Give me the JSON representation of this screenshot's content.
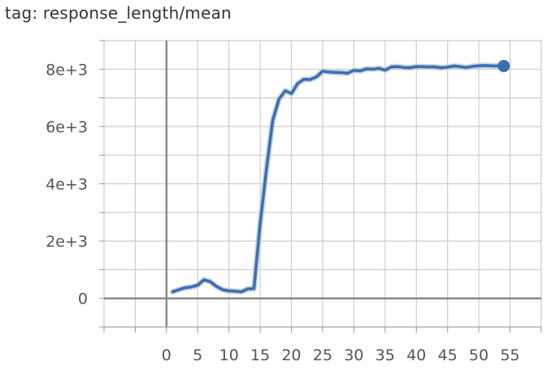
{
  "title": "tag: response_length/mean",
  "colors": {
    "line": "#3a6fb0",
    "raw": "#b9c7dc",
    "grid": "#cccccc",
    "axis": "#999999",
    "zero": "#888888"
  },
  "chart_data": {
    "type": "line",
    "title": "tag: response_length/mean",
    "xlabel": "",
    "ylabel": "",
    "xlim": [
      -10,
      60
    ],
    "ylim": [
      -1000,
      9000
    ],
    "xticks": [
      0,
      5,
      10,
      15,
      20,
      25,
      30,
      35,
      40,
      45,
      50,
      55
    ],
    "xtick_labels": [
      "0",
      "5",
      "10",
      "15",
      "20",
      "25",
      "30",
      "35",
      "40",
      "45",
      "50",
      "55"
    ],
    "yticks": [
      0,
      2000,
      4000,
      6000,
      8000
    ],
    "ytick_labels": [
      "0",
      "2e+3",
      "4e+3",
      "6e+3",
      "8e+3"
    ],
    "grid": true,
    "series": [
      {
        "x": [
          1,
          2,
          3,
          4,
          5,
          6,
          7,
          8,
          9,
          10,
          11,
          12,
          13,
          14,
          15,
          16,
          17,
          18,
          19,
          20,
          21,
          22,
          23,
          24,
          25,
          26,
          27,
          28,
          29,
          30,
          31,
          32,
          33,
          34,
          35,
          36,
          37,
          38,
          39,
          40,
          41,
          42,
          43,
          44,
          45,
          46,
          47,
          48,
          49,
          50,
          51,
          52,
          53,
          54
        ],
        "y": [
          230,
          300,
          370,
          400,
          460,
          650,
          580,
          420,
          300,
          260,
          250,
          230,
          330,
          340,
          2600,
          4500,
          6200,
          6950,
          7250,
          7150,
          7500,
          7650,
          7640,
          7730,
          7930,
          7900,
          7890,
          7880,
          7860,
          7960,
          7940,
          8010,
          8000,
          8030,
          7970,
          8080,
          8090,
          8060,
          8050,
          8090,
          8090,
          8080,
          8080,
          8050,
          8070,
          8110,
          8090,
          8060,
          8100,
          8120,
          8130,
          8120,
          8110,
          8110
        ]
      }
    ],
    "marker": "last point highlighted"
  }
}
